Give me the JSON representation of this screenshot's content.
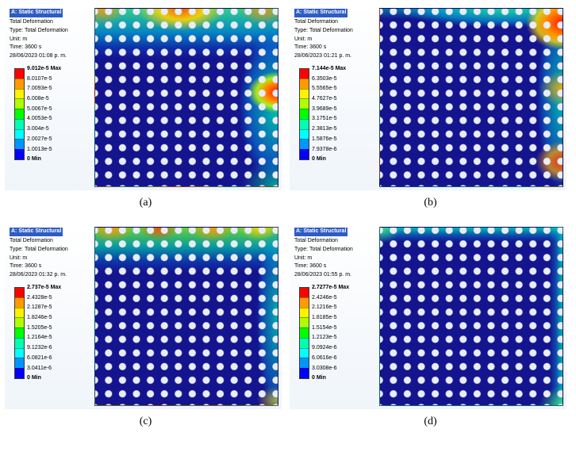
{
  "legend_colors": [
    "#ff0000",
    "#ff9b00",
    "#fff200",
    "#b0ff00",
    "#00ff00",
    "#00ffb0",
    "#00ffff",
    "#0096ff",
    "#0000ff"
  ],
  "panels": [
    {
      "id": "a",
      "caption": "(a)",
      "header": {
        "title": "A: Static Structural",
        "lines": [
          "Total Deformation",
          "Type: Total Deformation",
          "Unit: m",
          "Time: 3600 s",
          "28/06/2023 01:08 p. m."
        ]
      },
      "legend": {
        "max": "9.012e-5 Max",
        "values": [
          "8.0107e-5",
          "7.0093e-5",
          "6.008e-5",
          "5.0067e-5",
          "4.0053e-5",
          "3.004e-5",
          "2.0027e-5",
          "1.0013e-5"
        ],
        "min": "0 Min"
      }
    },
    {
      "id": "b",
      "caption": "(b)",
      "header": {
        "title": "A: Static Structural",
        "lines": [
          "Total Deformation",
          "Type: Total Deformation",
          "Unit: m",
          "Time: 3600 s",
          "28/06/2023 01:21 p. m."
        ]
      },
      "legend": {
        "max": "7.144e-5 Max",
        "values": [
          "6.3503e-5",
          "5.5565e-5",
          "4.7627e-5",
          "3.9689e-5",
          "3.1751e-5",
          "2.3813e-5",
          "1.5876e-5",
          "7.9378e-6"
        ],
        "min": "0 Min"
      }
    },
    {
      "id": "c",
      "caption": "(c)",
      "header": {
        "title": "A: Static Structural",
        "lines": [
          "Total Deformation",
          "Type: Total Deformation",
          "Unit: m",
          "Time: 3600 s",
          "28/06/2023 01:32 p. m."
        ]
      },
      "legend": {
        "max": "2.737e-5 Max",
        "values": [
          "2.4328e-5",
          "2.1287e-5",
          "1.8246e-5",
          "1.5205e-5",
          "1.2164e-5",
          "9.1232e-6",
          "6.0821e-6",
          "3.0411e-6"
        ],
        "min": "0 Min"
      }
    },
    {
      "id": "d",
      "caption": "(d)",
      "header": {
        "title": "A: Static Structural",
        "lines": [
          "Total Deformation",
          "Type: Total Deformation",
          "Unit: m",
          "Time: 3600 s",
          "28/06/2023 01:55 p. m."
        ]
      },
      "legend": {
        "max": "2.7277e-5 Max",
        "values": [
          "2.4246e-5",
          "2.1216e-5",
          "1.8185e-5",
          "1.5154e-5",
          "1.2123e-5",
          "9.0924e-6",
          "6.0616e-6",
          "3.0308e-6"
        ],
        "min": "0 Min"
      }
    }
  ]
}
